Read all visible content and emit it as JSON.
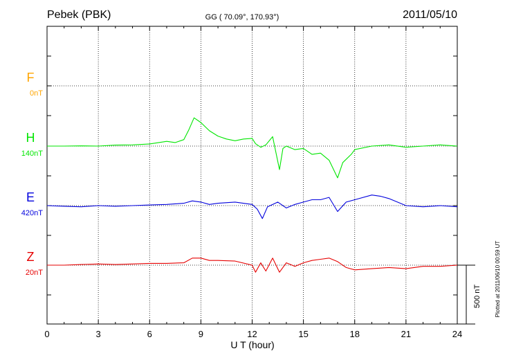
{
  "chart_data": {
    "type": "line",
    "title": "Pebek (PBK)",
    "coords": "GG ( 70.09°, 170.93°)",
    "date": "2011/05/10",
    "xlabel": "U T (hour)",
    "xlim": [
      0,
      24
    ],
    "xticks": [
      "0",
      "3",
      "6",
      "9",
      "12",
      "15",
      "18",
      "21",
      "24"
    ],
    "scale_label": "500 nT",
    "plotted_note": "Plotted at 2011/06/10 00:59 UT",
    "series": [
      {
        "name": "F",
        "offset_label": "0nT",
        "color": "#ffa500",
        "points": []
      },
      {
        "name": "H",
        "offset_label": "140nT",
        "color": "#00e600",
        "points": [
          [
            0,
            0
          ],
          [
            1,
            0
          ],
          [
            2,
            2
          ],
          [
            3,
            0
          ],
          [
            4,
            8
          ],
          [
            5,
            10
          ],
          [
            6,
            18
          ],
          [
            7,
            40
          ],
          [
            7.5,
            30
          ],
          [
            8,
            55
          ],
          [
            8.3,
            140
          ],
          [
            8.6,
            240
          ],
          [
            9,
            200
          ],
          [
            9.5,
            130
          ],
          [
            10,
            85
          ],
          [
            10.5,
            60
          ],
          [
            11,
            45
          ],
          [
            11.5,
            60
          ],
          [
            12,
            65
          ],
          [
            12.2,
            20
          ],
          [
            12.5,
            -10
          ],
          [
            12.8,
            10
          ],
          [
            13.2,
            80
          ],
          [
            13.6,
            -200
          ],
          [
            13.8,
            -20
          ],
          [
            14,
            0
          ],
          [
            14.5,
            -30
          ],
          [
            15,
            -20
          ],
          [
            15.5,
            -70
          ],
          [
            16,
            -60
          ],
          [
            16.5,
            -120
          ],
          [
            17,
            -270
          ],
          [
            17.3,
            -140
          ],
          [
            17.8,
            -70
          ],
          [
            18,
            -30
          ],
          [
            19,
            0
          ],
          [
            20,
            10
          ],
          [
            21,
            -10
          ],
          [
            22,
            0
          ],
          [
            23,
            10
          ],
          [
            24,
            0
          ]
        ]
      },
      {
        "name": "E",
        "offset_label": "420nT",
        "color": "#0000dd",
        "points": [
          [
            0,
            0
          ],
          [
            1,
            -5
          ],
          [
            2,
            -10
          ],
          [
            3,
            0
          ],
          [
            4,
            -5
          ],
          [
            5,
            0
          ],
          [
            6,
            5
          ],
          [
            7,
            10
          ],
          [
            8,
            20
          ],
          [
            8.5,
            40
          ],
          [
            9,
            30
          ],
          [
            9.5,
            10
          ],
          [
            10,
            20
          ],
          [
            11,
            30
          ],
          [
            12,
            10
          ],
          [
            12.3,
            -30
          ],
          [
            12.6,
            -110
          ],
          [
            12.9,
            -10
          ],
          [
            13.5,
            30
          ],
          [
            14,
            -20
          ],
          [
            14.5,
            10
          ],
          [
            15,
            30
          ],
          [
            15.5,
            50
          ],
          [
            16,
            50
          ],
          [
            16.5,
            70
          ],
          [
            17,
            -50
          ],
          [
            17.5,
            30
          ],
          [
            18,
            50
          ],
          [
            19,
            90
          ],
          [
            19.5,
            80
          ],
          [
            20,
            60
          ],
          [
            21,
            0
          ],
          [
            22,
            -10
          ],
          [
            23,
            0
          ],
          [
            24,
            -10
          ]
        ]
      },
      {
        "name": "Z",
        "offset_label": "20nT",
        "color": "#e60000",
        "points": [
          [
            0,
            0
          ],
          [
            1,
            0
          ],
          [
            2,
            5
          ],
          [
            3,
            10
          ],
          [
            4,
            5
          ],
          [
            5,
            10
          ],
          [
            6,
            15
          ],
          [
            7,
            15
          ],
          [
            8,
            20
          ],
          [
            8.5,
            60
          ],
          [
            9,
            60
          ],
          [
            9.5,
            40
          ],
          [
            10,
            40
          ],
          [
            11,
            35
          ],
          [
            12,
            0
          ],
          [
            12.2,
            -60
          ],
          [
            12.5,
            20
          ],
          [
            12.8,
            -50
          ],
          [
            13.2,
            60
          ],
          [
            13.6,
            -60
          ],
          [
            14,
            20
          ],
          [
            14.5,
            -10
          ],
          [
            15,
            20
          ],
          [
            15.5,
            40
          ],
          [
            16,
            50
          ],
          [
            16.5,
            60
          ],
          [
            17,
            30
          ],
          [
            17.5,
            -20
          ],
          [
            18,
            -40
          ],
          [
            19,
            -30
          ],
          [
            20,
            -20
          ],
          [
            21,
            -30
          ],
          [
            22,
            -10
          ],
          [
            23,
            -10
          ],
          [
            24,
            0
          ]
        ]
      }
    ]
  }
}
